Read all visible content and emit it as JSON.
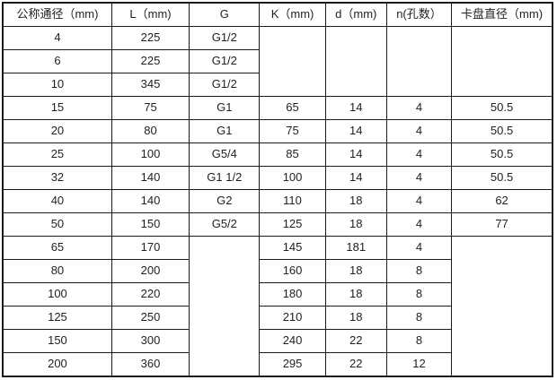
{
  "colors": {
    "border": "#1a1a1a",
    "text": "#1f1f1f",
    "background": "#ffffff"
  },
  "table": {
    "headers": {
      "dn": "公称通径（mm)",
      "l": "L（mm)",
      "g": "G",
      "k": "K（mm)",
      "d": "d（mm)",
      "n": "n(孔数）",
      "ck": "卡盘直径（mm)"
    },
    "rows": [
      {
        "dn": "4",
        "l": "225",
        "g": "G1/2"
      },
      {
        "dn": "6",
        "l": "225",
        "g": "G1/2"
      },
      {
        "dn": "10",
        "l": "345",
        "g": "G1/2"
      },
      {
        "dn": "15",
        "l": "75",
        "g": "G1",
        "k": "65",
        "d": "14",
        "n": "4",
        "ck": "50.5"
      },
      {
        "dn": "20",
        "l": "80",
        "g": "G1",
        "k": "75",
        "d": "14",
        "n": "4",
        "ck": "50.5"
      },
      {
        "dn": "25",
        "l": "100",
        "g": "G5/4",
        "k": "85",
        "d": "14",
        "n": "4",
        "ck": "50.5"
      },
      {
        "dn": "32",
        "l": "140",
        "g": "G1 1/2",
        "k": "100",
        "d": "14",
        "n": "4",
        "ck": "50.5"
      },
      {
        "dn": "40",
        "l": "140",
        "g": "G2",
        "k": "110",
        "d": "18",
        "n": "4",
        "ck": "62"
      },
      {
        "dn": "50",
        "l": "150",
        "g": "G5/2",
        "k": "125",
        "d": "18",
        "n": "4",
        "ck": "77"
      },
      {
        "dn": "65",
        "l": "170",
        "k": "145",
        "d": "181",
        "n": "4"
      },
      {
        "dn": "80",
        "l": "200",
        "k": "160",
        "d": "18",
        "n": "8"
      },
      {
        "dn": "100",
        "l": "220",
        "k": "180",
        "d": "18",
        "n": "8"
      },
      {
        "dn": "125",
        "l": "250",
        "k": "210",
        "d": "18",
        "n": "8"
      },
      {
        "dn": "150",
        "l": "300",
        "k": "240",
        "d": "22",
        "n": "8"
      },
      {
        "dn": "200",
        "l": "360",
        "k": "295",
        "d": "22",
        "n": "12"
      }
    ]
  }
}
